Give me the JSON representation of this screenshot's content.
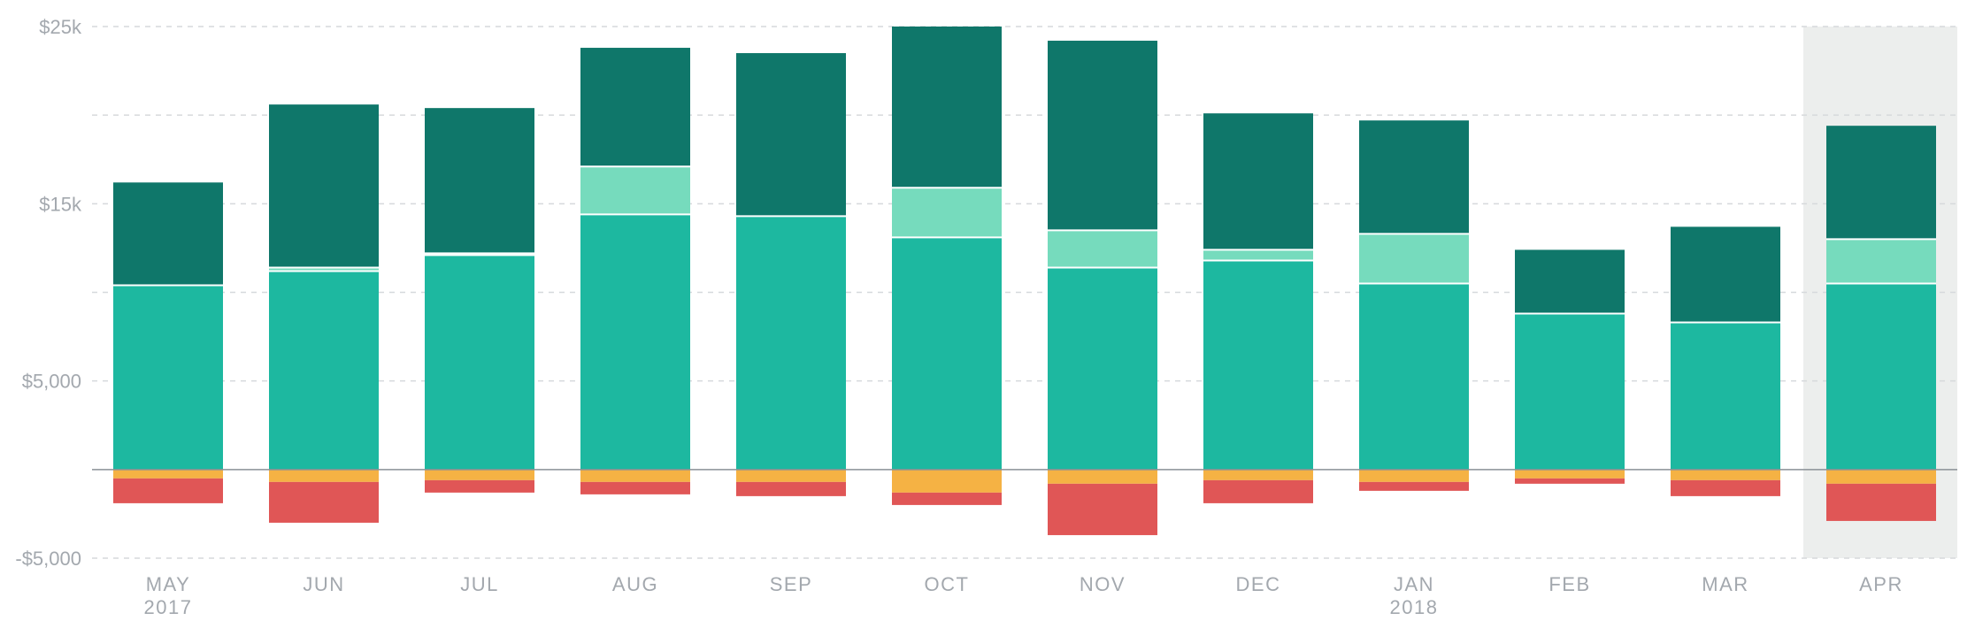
{
  "chart_data": {
    "type": "bar",
    "stacked": true,
    "categories": [
      "MAY",
      "JUN",
      "JUL",
      "AUG",
      "SEP",
      "OCT",
      "NOV",
      "DEC",
      "JAN",
      "FEB",
      "MAR",
      "APR"
    ],
    "category_sublabels": [
      "2017",
      "",
      "",
      "",
      "",
      "",
      "",
      "",
      "2018",
      "",
      "",
      ""
    ],
    "highlighted_category": "APR",
    "y_ticks": [
      {
        "value": 25000,
        "label": "$25k"
      },
      {
        "value": 15000,
        "label": "$15k"
      },
      {
        "value": 5000,
        "label": "$5,000"
      },
      {
        "value": -5000,
        "label": "-$5,000"
      }
    ],
    "ylim": [
      -5000,
      25000
    ],
    "grid": true,
    "series": [
      {
        "color": "#1db8a0",
        "values": [
          10400,
          11200,
          12100,
          14400,
          14300,
          13100,
          11400,
          11800,
          10500,
          8800,
          8300,
          10500
        ]
      },
      {
        "color": "#76dbbd",
        "values": [
          0,
          200,
          100,
          2700,
          0,
          2800,
          2100,
          600,
          2800,
          0,
          0,
          2500
        ]
      },
      {
        "color": "#0f776a",
        "values": [
          5800,
          9200,
          8200,
          6700,
          9200,
          9100,
          10700,
          7700,
          6400,
          3600,
          5400,
          6400
        ]
      },
      {
        "color": "#f5b244",
        "values": [
          -500,
          -700,
          -600,
          -700,
          -700,
          -1300,
          -800,
          -600,
          -700,
          -500,
          -600,
          -800
        ]
      },
      {
        "color": "#e05656",
        "values": [
          -1400,
          -2300,
          -700,
          -700,
          -800,
          -700,
          -2900,
          -1300,
          -500,
          -300,
          -900,
          -2100
        ]
      }
    ],
    "colors": {
      "grid": "#d6d9dc",
      "zero_line": "#8a9096",
      "highlight_band": "#eceeed",
      "axis_text": "#a3a8ae",
      "segment_separator": "#ffffff"
    }
  }
}
